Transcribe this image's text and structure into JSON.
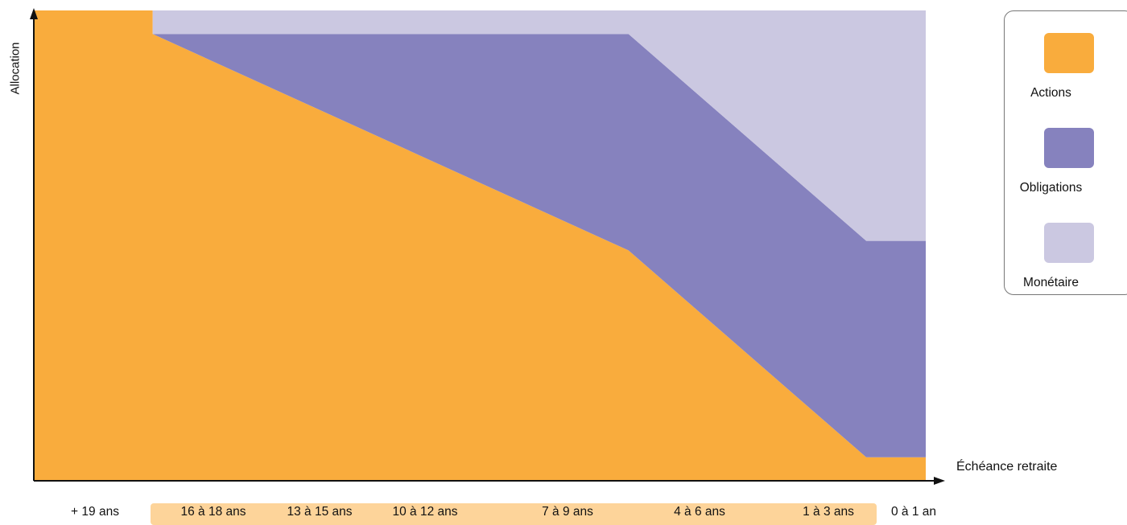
{
  "chart_data": {
    "type": "area",
    "stacked": true,
    "xlabel": "Échéance retraite",
    "ylabel": "Allocation",
    "categories": [
      "+ 19 ans",
      "16 à 18 ans",
      "13 à 15 ans",
      "10 à 12 ans",
      "7 à 9 ans",
      "4 à 6 ans",
      "1 à 3 ans",
      "0 à 1 an"
    ],
    "highlight_band": {
      "from": "16 à 18 ans",
      "to": "1 à 3 ans",
      "color": "#fdd49a"
    },
    "x": [
      0,
      1,
      1,
      5,
      7,
      7,
      7.5
    ],
    "ylim": [
      0,
      100
    ],
    "series": [
      {
        "name": "Actions",
        "color": "#f9ac3d",
        "values": [
          100,
          100,
          95,
          49,
          5,
          5,
          5
        ]
      },
      {
        "name": "Obligations",
        "color": "#8682be",
        "values": [
          0,
          0,
          0,
          46,
          46,
          46,
          46
        ]
      },
      {
        "name": "Monétaire",
        "color": "#cbc8e1",
        "values": [
          0,
          0,
          5,
          5,
          49,
          49,
          49
        ]
      }
    ],
    "legend": "right",
    "grid": false
  }
}
